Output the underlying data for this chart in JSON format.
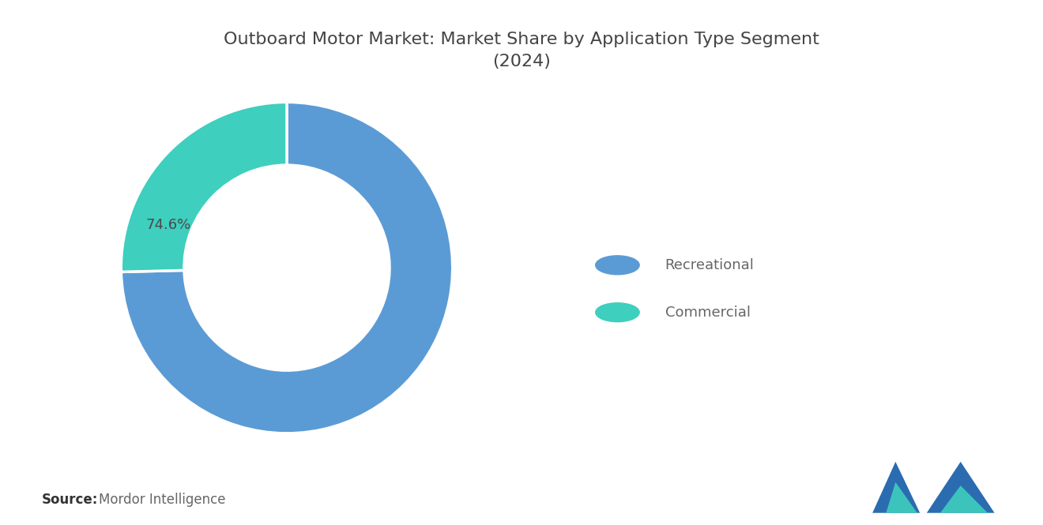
{
  "title": "Outboard Motor Market: Market Share by Application Type Segment\n(2024)",
  "segments": [
    "Recreational",
    "Commercial"
  ],
  "values": [
    74.6,
    25.4
  ],
  "colors": [
    "#5B9BD5",
    "#3ECFBE"
  ],
  "label_text": "74.6%",
  "source_bold": "Source:",
  "source_normal": "Mordor Intelligence",
  "background_color": "#FFFFFF",
  "title_fontsize": 16,
  "legend_fontsize": 13,
  "label_fontsize": 13,
  "source_fontsize": 12
}
